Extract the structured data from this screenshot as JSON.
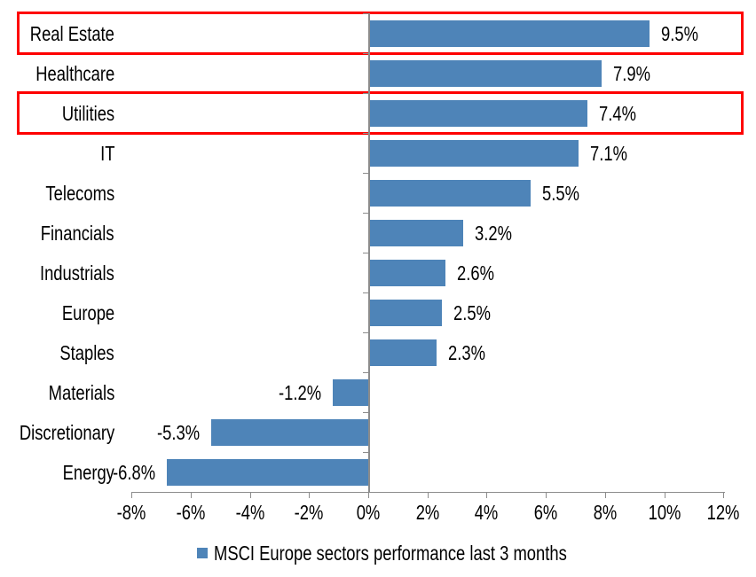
{
  "chart_data": {
    "type": "bar",
    "orientation": "horizontal",
    "categories": [
      "Real Estate",
      "Healthcare",
      "Utilities",
      "IT",
      "Telecoms",
      "Financials",
      "Industrials",
      "Europe",
      "Staples",
      "Materials",
      "Discretionary",
      "Energy"
    ],
    "values": [
      9.5,
      7.9,
      7.4,
      7.1,
      5.5,
      3.2,
      2.6,
      2.5,
      2.3,
      -1.2,
      -5.3,
      -6.8
    ],
    "data_labels": [
      "9.5%",
      "7.9%",
      "7.4%",
      "7.1%",
      "5.5%",
      "3.2%",
      "2.6%",
      "2.5%",
      "2.3%",
      "-1.2%",
      "-5.3%",
      "-6.8%"
    ],
    "legend": "MSCI Europe sectors performance last 3 months",
    "legend_position": "bottom",
    "grid": false,
    "x_axis": {
      "min": -8,
      "max": 12,
      "tick_step": 2,
      "tick_values": [
        -8,
        -6,
        -4,
        -2,
        0,
        2,
        4,
        6,
        8,
        10,
        12
      ],
      "tick_labels": [
        "-8%",
        "-6%",
        "-4%",
        "-2%",
        "0%",
        "2%",
        "4%",
        "6%",
        "8%",
        "10%",
        "12%"
      ]
    },
    "highlighted_categories": [
      "Real Estate",
      "Utilities"
    ],
    "colors": {
      "bar": "#4E84B8",
      "highlight_box": "#FE0000",
      "axis": "#8C8C8C",
      "text": "#000000"
    }
  }
}
